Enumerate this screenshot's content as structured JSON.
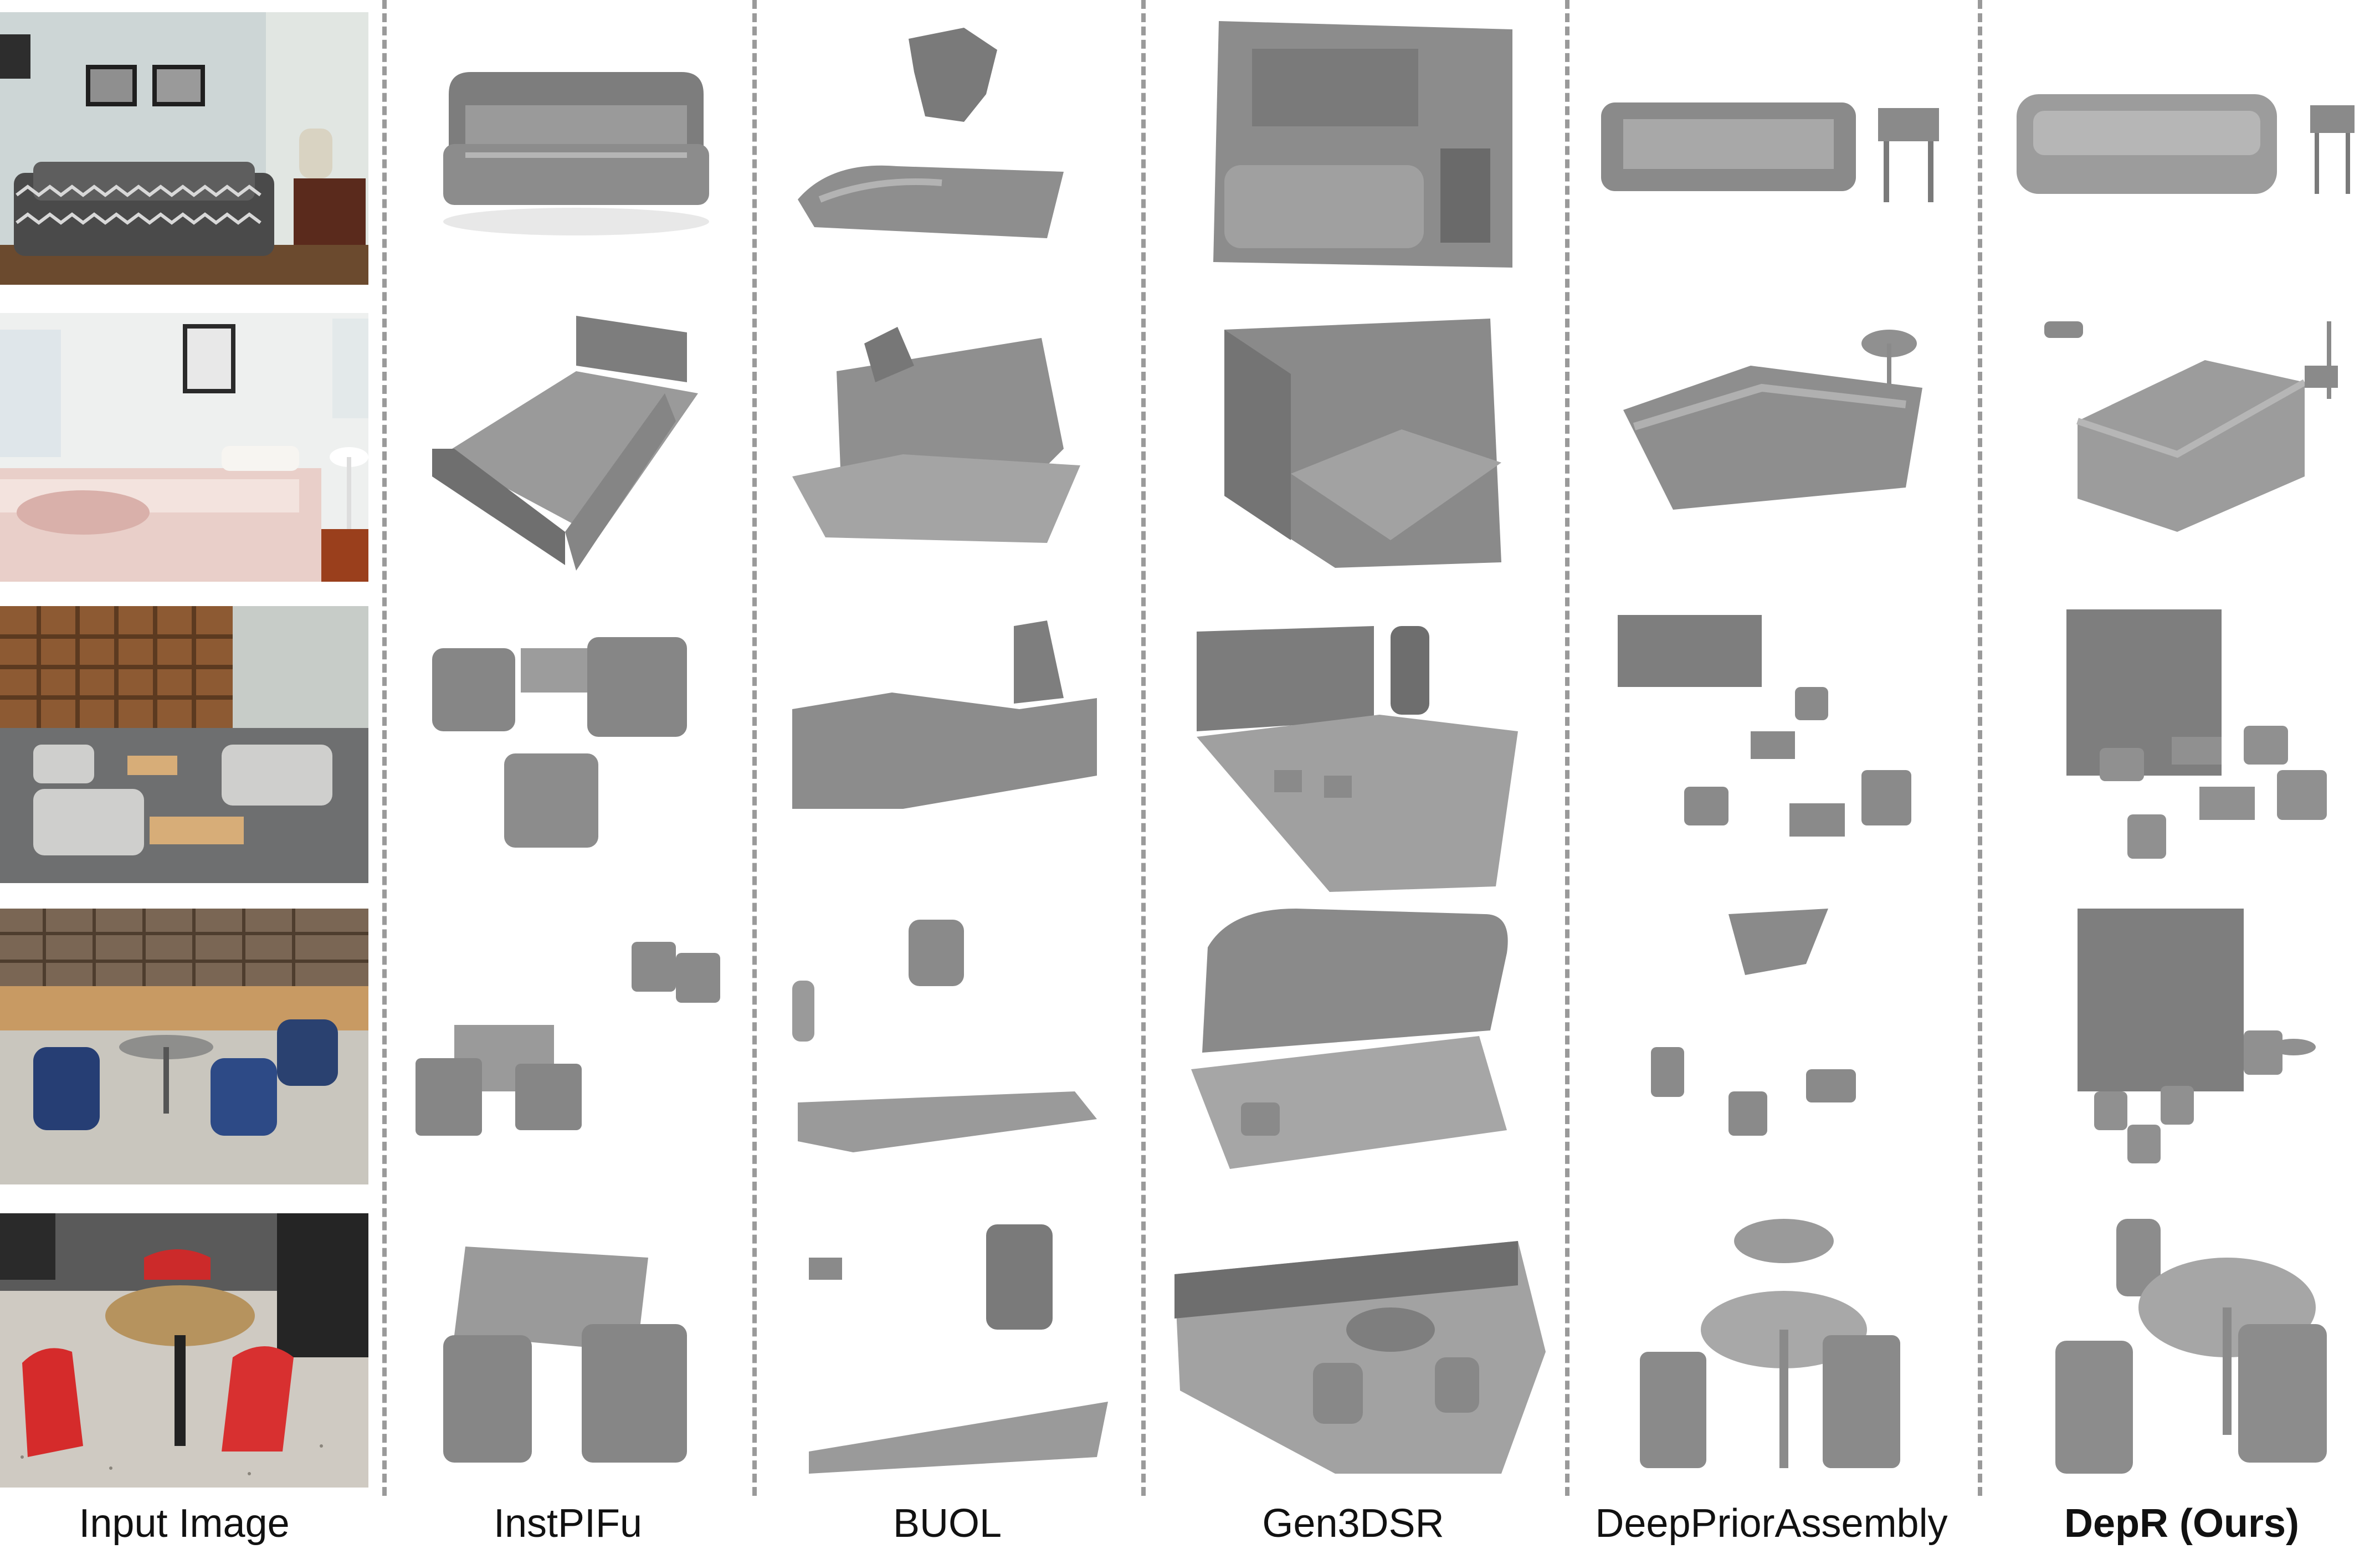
{
  "columns": [
    {
      "key": "input",
      "label": "Input Image",
      "bold": false
    },
    {
      "key": "instpifu",
      "label": "InstPIFu",
      "bold": false
    },
    {
      "key": "buol",
      "label": "BUOL",
      "bold": false
    },
    {
      "key": "gen3dsr",
      "label": "Gen3DSR",
      "bold": false
    },
    {
      "key": "dpa",
      "label": "DeepPriorAssembly",
      "bold": false
    },
    {
      "key": "depr",
      "label": "DepR (Ours)",
      "bold": true
    }
  ],
  "rows": [
    {
      "scene": "living-room-sofa"
    },
    {
      "scene": "bedroom"
    },
    {
      "scene": "lounge-armchairs"
    },
    {
      "scene": "cafe-blue-chairs"
    },
    {
      "scene": "cafe-red-chairs"
    }
  ]
}
